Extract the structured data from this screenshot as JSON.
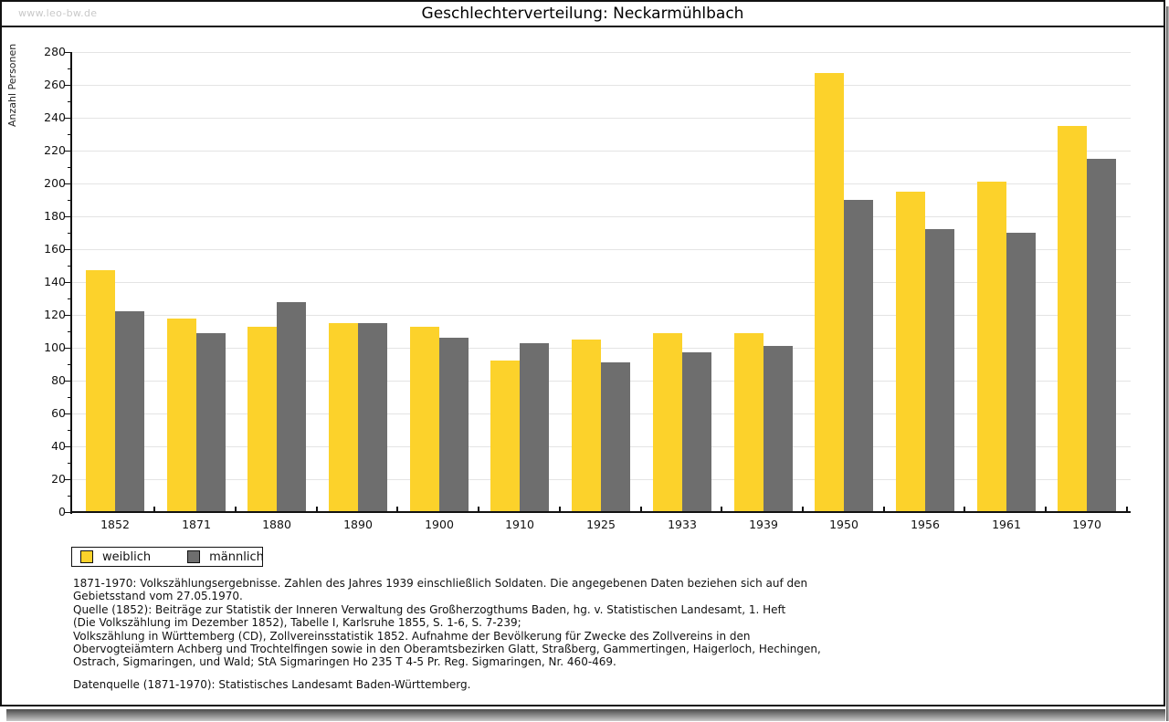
{
  "watermark": "www.leo-bw.de",
  "title": "Geschlechterverteilung: Neckarmühlbach",
  "chart_data": {
    "type": "bar",
    "title": "Geschlechterverteilung: Neckarmühlbach",
    "xlabel": "",
    "ylabel": "Anzahl Personen",
    "categories": [
      "1852",
      "1871",
      "1880",
      "1890",
      "1900",
      "1910",
      "1925",
      "1933",
      "1939",
      "1950",
      "1956",
      "1961",
      "1970"
    ],
    "series": [
      {
        "name": "weiblich",
        "color": "#FCD22B",
        "values": [
          147,
          118,
          113,
          115,
          113,
          92,
          105,
          109,
          109,
          267,
          195,
          201,
          235
        ]
      },
      {
        "name": "männlich",
        "color": "#6E6E6E",
        "values": [
          122,
          109,
          128,
          115,
          106,
          103,
          91,
          97,
          101,
          190,
          172,
          170,
          215
        ]
      }
    ],
    "ylim": [
      0,
      280
    ],
    "ytick_step": 20,
    "grid": true,
    "gridline_color": "#e4e4e4",
    "legend_position": "bottom-left"
  },
  "legend": {
    "items": [
      {
        "label": "weiblich",
        "color": "#FCD22B"
      },
      {
        "label": "männlich",
        "color": "#6E6E6E"
      }
    ]
  },
  "footer": {
    "lines": [
      "1871-1970: Volkszählungsergebnisse. Zahlen des Jahres 1939 einschließlich Soldaten. Die angegebenen Daten beziehen sich auf den",
      "Gebietsstand vom 27.05.1970.",
      "Quelle (1852): Beiträge zur Statistik der Inneren Verwaltung des Großherzogthums Baden, hg. v. Statistischen Landesamt, 1. Heft",
      "(Die Volkszählung im Dezember 1852), Tabelle I, Karlsruhe 1855, S. 1-6, S. 7-239;",
      "Volkszählung in Württemberg (CD), Zollvereinsstatistik 1852. Aufnahme der Bevölkerung für Zwecke des Zollvereins in den",
      "Obervogteiämtern Achberg und Trochtelfingen sowie in den Oberamtsbezirken Glatt, Straßberg, Gammertingen, Haigerloch, Hechingen,",
      "Ostrach, Sigmaringen, und Wald; StA Sigmaringen Ho 235 T 4-5 Pr. Reg. Sigmaringen, Nr. 460-469.",
      "Datenquelle (1871-1970): Statistisches Landesamt Baden-Württemberg."
    ]
  }
}
